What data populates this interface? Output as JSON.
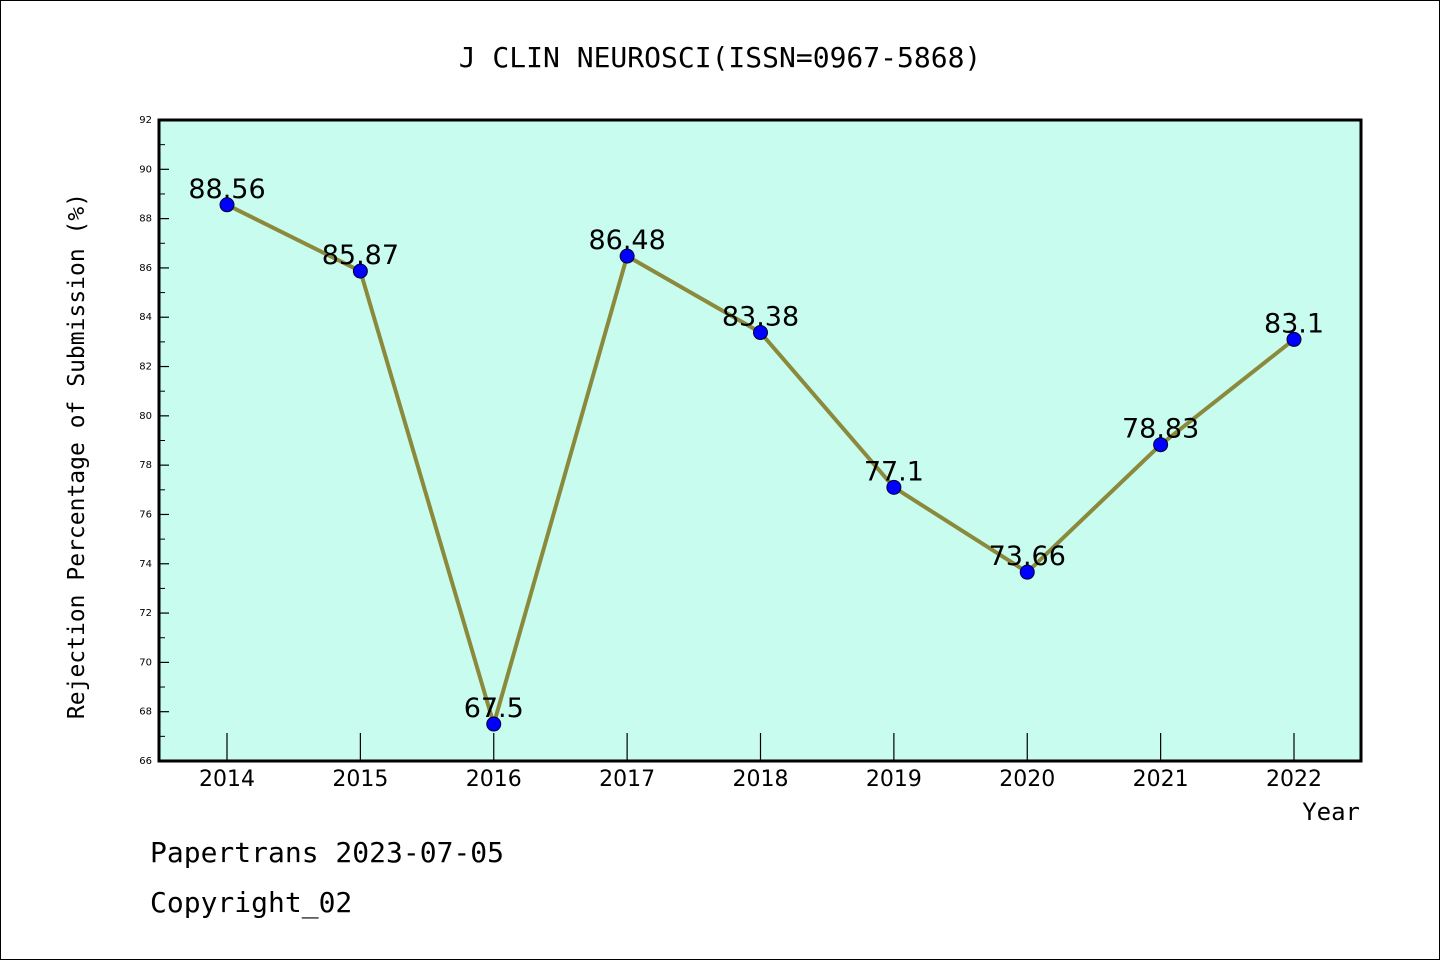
{
  "chart_data": {
    "type": "line",
    "title": "J CLIN NEUROSCI(ISSN=0967-5868)",
    "xlabel": "Year",
    "ylabel": "Rejection Percentage of Submission (%)",
    "categories": [
      "2014",
      "2015",
      "2016",
      "2017",
      "2018",
      "2019",
      "2020",
      "2021",
      "2022"
    ],
    "series": [
      {
        "values": [
          88.56,
          85.87,
          67.5,
          86.48,
          83.38,
          77.1,
          73.66,
          78.83,
          83.1
        ],
        "labels": [
          "88.56",
          "85.87",
          "67.5",
          "86.48",
          "83.38",
          "77.1",
          "73.66",
          "78.83",
          "83.1"
        ]
      }
    ],
    "ylim": [
      66,
      92
    ],
    "yticks": [
      "66",
      "68",
      "70",
      "72",
      "74",
      "76",
      "78",
      "80",
      "82",
      "84",
      "86",
      "88",
      "90",
      "92"
    ],
    "grid": false,
    "colors": {
      "plot_background": "#c8fcee",
      "line": "#8b8a3c",
      "marker": "#0000ff"
    }
  },
  "footer": {
    "date_text": "Papertrans 2023-07-05",
    "copyright_text": "Copyright_02"
  }
}
